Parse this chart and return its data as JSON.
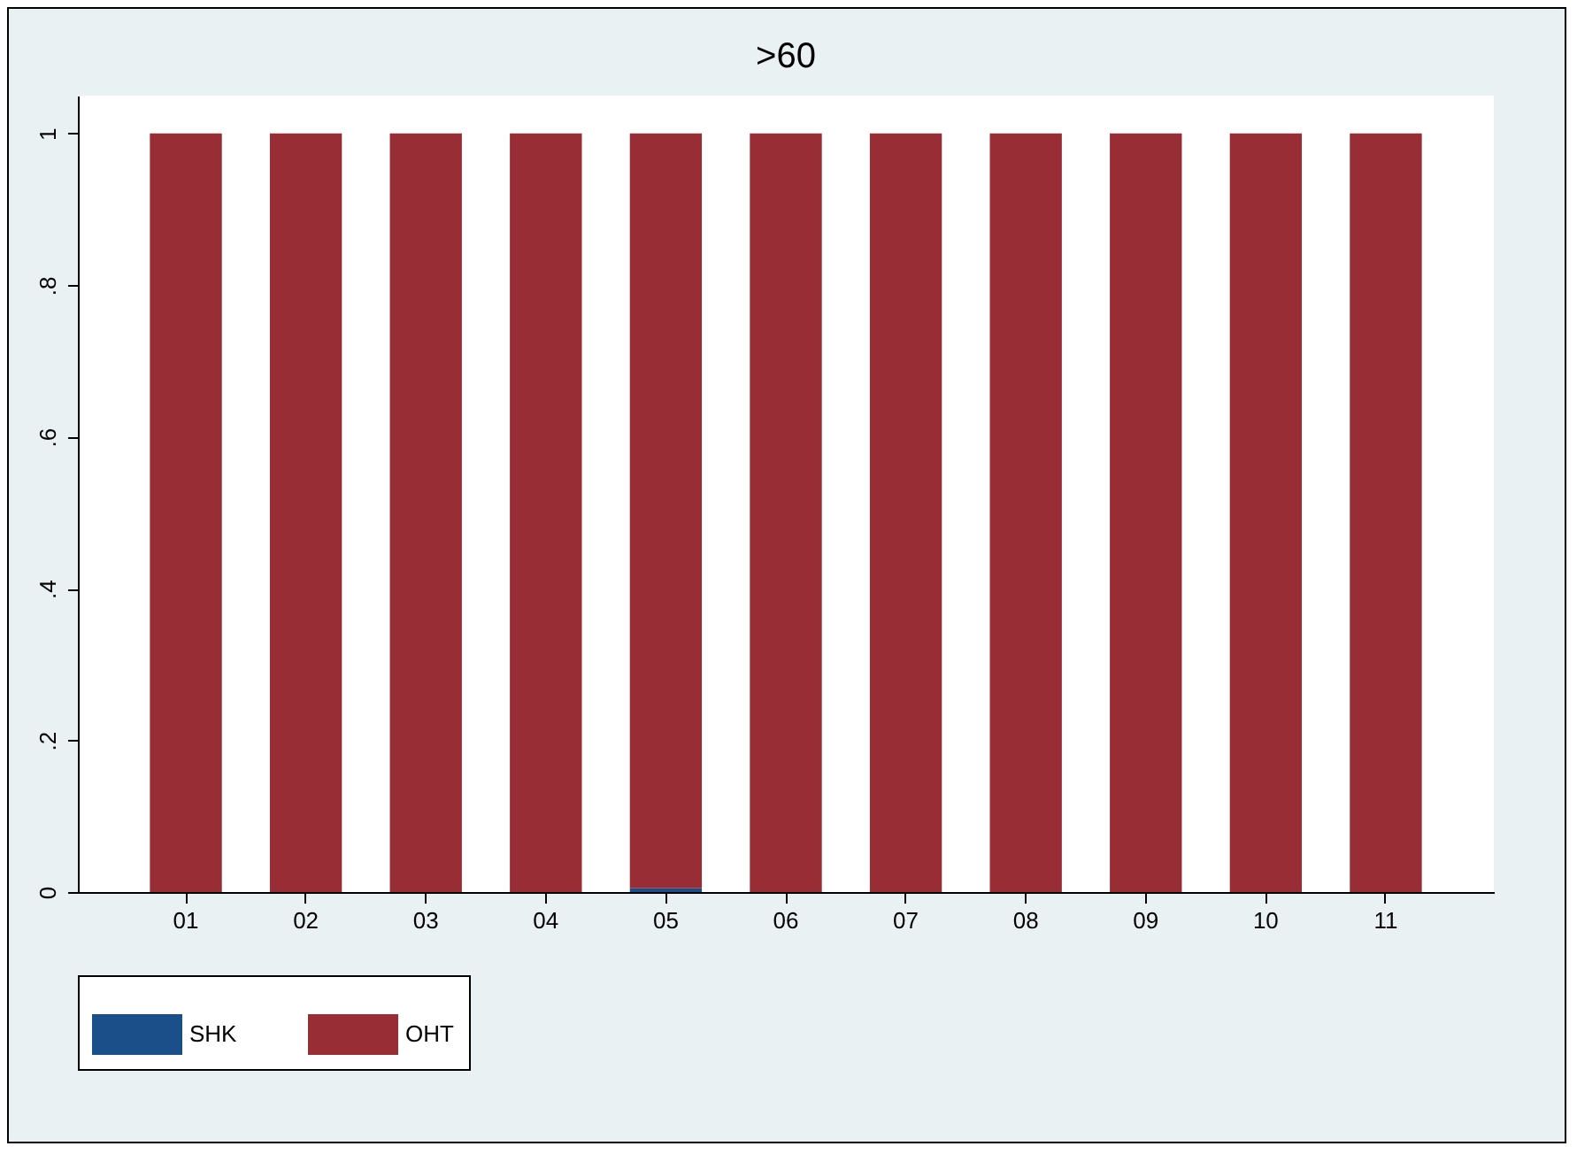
{
  "chart_data": {
    "type": "bar",
    "title": ">60",
    "stacked": true,
    "legend": "bottom",
    "categories": [
      "01",
      "02",
      "03",
      "04",
      "05",
      "06",
      "07",
      "08",
      "09",
      "10",
      "11"
    ],
    "series": [
      {
        "name": "SHK",
        "color": "#1a4f8a",
        "values": [
          0,
          0,
          0,
          0,
          0.005,
          0,
          0,
          0,
          0,
          0,
          0
        ]
      },
      {
        "name": "OHT",
        "color": "#982d36",
        "values": [
          1,
          1,
          1,
          1,
          0.995,
          1,
          1,
          1,
          1,
          1,
          1
        ]
      }
    ],
    "ylim": [
      0,
      1.05
    ],
    "yticks": [
      0,
      {
        "value": 0.2,
        "label": ".2"
      },
      {
        "value": 0.4,
        "label": ".4"
      },
      {
        "value": 0.6,
        "label": ".6"
      },
      {
        "value": 0.8,
        "label": ".8"
      },
      1
    ]
  }
}
